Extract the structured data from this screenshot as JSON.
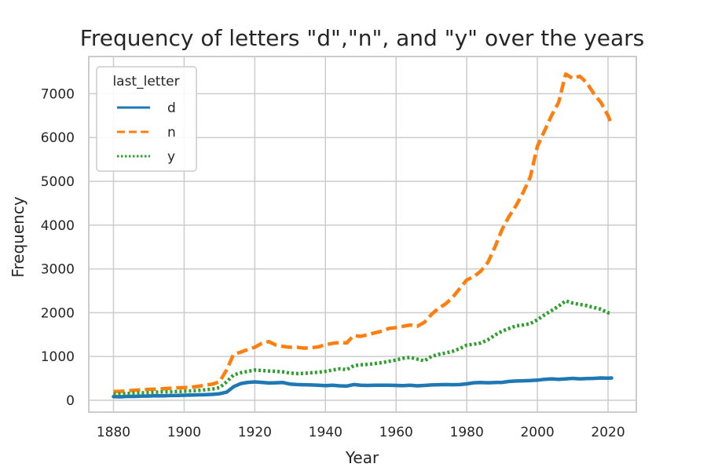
{
  "chart_data": {
    "type": "line",
    "title": "Frequency of letters \"d\",\"n\", and \"y\" over the years",
    "xlabel": "Year",
    "ylabel": "Frequency",
    "xlim": [
      1873,
      2028
    ],
    "ylim": [
      -270,
      7850
    ],
    "xticks": [
      1880,
      1900,
      1920,
      1940,
      1960,
      1980,
      2000,
      2020
    ],
    "yticks": [
      0,
      1000,
      2000,
      3000,
      4000,
      5000,
      6000,
      7000
    ],
    "grid": true,
    "legend": {
      "title": "last_letter",
      "placement": "top-left"
    },
    "series": [
      {
        "name": "d",
        "color": "#1f77b4",
        "dash": "solid",
        "x": [
          1880,
          1882,
          1884,
          1886,
          1888,
          1890,
          1892,
          1894,
          1896,
          1898,
          1900,
          1902,
          1904,
          1906,
          1908,
          1910,
          1912,
          1914,
          1916,
          1918,
          1920,
          1922,
          1924,
          1926,
          1928,
          1930,
          1932,
          1934,
          1936,
          1938,
          1940,
          1942,
          1944,
          1946,
          1948,
          1950,
          1952,
          1954,
          1956,
          1958,
          1960,
          1962,
          1964,
          1966,
          1968,
          1970,
          1972,
          1974,
          1976,
          1978,
          1980,
          1982,
          1984,
          1986,
          1988,
          1990,
          1992,
          1994,
          1996,
          1998,
          2000,
          2002,
          2004,
          2006,
          2008,
          2010,
          2012,
          2014,
          2016,
          2018,
          2020,
          2021
        ],
        "y": [
          85,
          80,
          90,
          88,
          95,
          98,
          105,
          102,
          108,
          110,
          115,
          120,
          125,
          130,
          135,
          150,
          185,
          310,
          380,
          410,
          420,
          410,
          395,
          400,
          405,
          370,
          360,
          355,
          350,
          345,
          335,
          345,
          330,
          325,
          360,
          345,
          340,
          345,
          345,
          345,
          340,
          335,
          345,
          330,
          340,
          350,
          355,
          360,
          355,
          360,
          375,
          400,
          405,
          400,
          405,
          410,
          430,
          440,
          445,
          450,
          460,
          480,
          490,
          480,
          490,
          500,
          490,
          495,
          500,
          510,
          505,
          510
        ]
      },
      {
        "name": "n",
        "color": "#ff7f0e",
        "dash": "dashed",
        "x": [
          1880,
          1882,
          1884,
          1886,
          1888,
          1890,
          1892,
          1894,
          1896,
          1898,
          1900,
          1902,
          1904,
          1906,
          1908,
          1910,
          1912,
          1914,
          1916,
          1918,
          1920,
          1922,
          1924,
          1926,
          1928,
          1930,
          1932,
          1934,
          1936,
          1938,
          1940,
          1942,
          1944,
          1946,
          1948,
          1950,
          1952,
          1954,
          1956,
          1958,
          1960,
          1962,
          1964,
          1966,
          1968,
          1970,
          1972,
          1974,
          1976,
          1978,
          1980,
          1982,
          1984,
          1986,
          1988,
          1990,
          1992,
          1994,
          1996,
          1998,
          2000,
          2002,
          2004,
          2006,
          2008,
          2010,
          2012,
          2014,
          2016,
          2018,
          2020,
          2021
        ],
        "y": [
          200,
          205,
          220,
          230,
          240,
          250,
          255,
          265,
          275,
          285,
          290,
          300,
          320,
          345,
          370,
          420,
          690,
          1050,
          1100,
          1160,
          1210,
          1300,
          1340,
          1260,
          1230,
          1210,
          1210,
          1190,
          1200,
          1220,
          1270,
          1300,
          1320,
          1310,
          1480,
          1460,
          1500,
          1540,
          1580,
          1640,
          1660,
          1690,
          1720,
          1690,
          1780,
          1960,
          2100,
          2200,
          2350,
          2550,
          2750,
          2820,
          2950,
          3150,
          3500,
          3900,
          4200,
          4450,
          4750,
          5100,
          5800,
          6150,
          6500,
          6800,
          7450,
          7350,
          7400,
          7250,
          7000,
          6800,
          6500,
          6300
        ]
      },
      {
        "name": "y",
        "color": "#2ca02c",
        "dash": "dotted",
        "x": [
          1880,
          1882,
          1884,
          1886,
          1888,
          1890,
          1892,
          1894,
          1896,
          1898,
          1900,
          1902,
          1904,
          1906,
          1908,
          1910,
          1912,
          1914,
          1916,
          1918,
          1920,
          1922,
          1924,
          1926,
          1928,
          1930,
          1932,
          1934,
          1936,
          1938,
          1940,
          1942,
          1944,
          1946,
          1948,
          1950,
          1952,
          1954,
          1956,
          1958,
          1960,
          1962,
          1964,
          1966,
          1968,
          1970,
          1972,
          1974,
          1976,
          1978,
          1980,
          1982,
          1984,
          1986,
          1988,
          1990,
          1992,
          1994,
          1996,
          1998,
          2000,
          2002,
          2004,
          2006,
          2008,
          2010,
          2012,
          2014,
          2016,
          2018,
          2020,
          2021
        ],
        "y": [
          140,
          150,
          155,
          165,
          170,
          175,
          185,
          190,
          195,
          200,
          205,
          215,
          225,
          240,
          255,
          290,
          420,
          580,
          630,
          660,
          690,
          680,
          670,
          660,
          650,
          620,
          610,
          615,
          630,
          640,
          660,
          690,
          720,
          700,
          790,
          810,
          820,
          840,
          860,
          890,
          920,
          960,
          980,
          940,
          900,
          1000,
          1050,
          1080,
          1120,
          1180,
          1260,
          1280,
          1310,
          1380,
          1490,
          1580,
          1640,
          1700,
          1720,
          1750,
          1840,
          1950,
          2050,
          2150,
          2270,
          2220,
          2190,
          2160,
          2120,
          2080,
          2000,
          1990
        ]
      }
    ]
  }
}
